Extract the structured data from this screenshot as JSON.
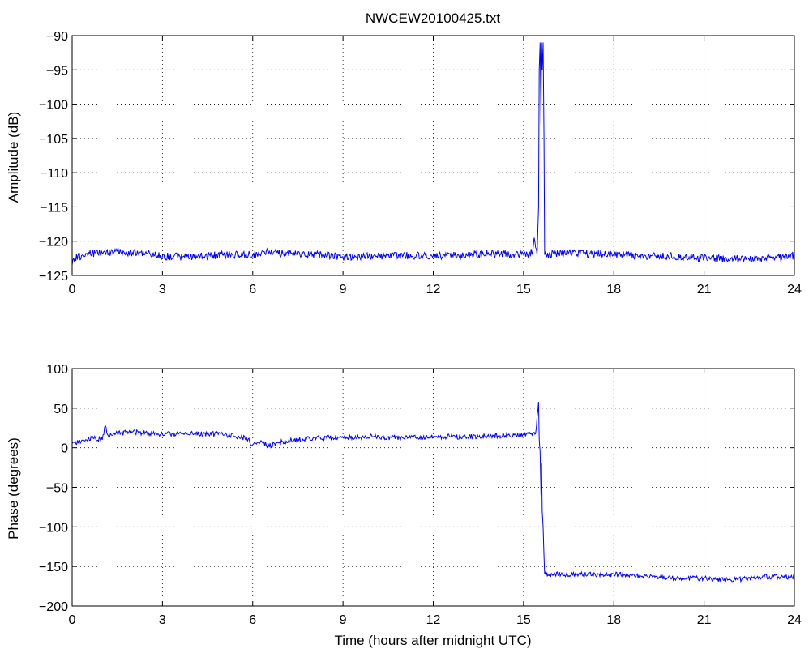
{
  "figure": {
    "title": "NWCEW20100425.txt"
  },
  "chart_data": [
    {
      "type": "line",
      "title": "NWCEW20100425.txt",
      "xlabel": "",
      "ylabel": "Amplitude (dB)",
      "xlim": [
        0,
        24
      ],
      "ylim": [
        -125,
        -90
      ],
      "xticks": [
        0,
        3,
        6,
        9,
        12,
        15,
        18,
        21,
        24
      ],
      "yticks": [
        -125,
        -120,
        -115,
        -110,
        -105,
        -100,
        -95,
        -90
      ],
      "xtick_labels": [
        "0",
        "3",
        "6",
        "9",
        "12",
        "15",
        "18",
        "21",
        "24"
      ],
      "ytick_labels": [
        "−125",
        "−120",
        "−115",
        "−110",
        "−105",
        "−100",
        "−95",
        "−90"
      ],
      "grid": true,
      "line_color": "#0000ff",
      "series": [
        {
          "x": [
            0,
            0.05,
            0.5,
            1,
            1.5,
            2,
            2.5,
            3,
            4,
            5,
            6,
            6.5,
            7,
            8,
            9,
            10,
            11,
            12,
            13,
            14,
            15,
            15.3,
            15.35,
            15.45,
            15.5,
            15.52,
            15.55,
            15.58,
            15.6,
            15.62,
            15.65,
            15.68,
            15.7,
            15.75,
            16,
            17,
            18,
            19,
            20,
            20.5,
            21,
            22,
            23,
            23.5,
            24
          ],
          "y": [
            -123.5,
            -122.5,
            -121.8,
            -121.7,
            -121.5,
            -121.7,
            -121.8,
            -122.2,
            -122.3,
            -122,
            -122,
            -121.5,
            -121.8,
            -121.9,
            -122.3,
            -122.2,
            -122.1,
            -122.1,
            -122.1,
            -121.8,
            -122,
            -121.6,
            -119.5,
            -122,
            -115,
            -95,
            -91,
            -103,
            -91,
            -95,
            -91,
            -105,
            -122,
            -122,
            -121.8,
            -121.8,
            -121.9,
            -122.2,
            -122.2,
            -122.3,
            -122.5,
            -122.6,
            -122.6,
            -122.4,
            -122.1
          ]
        }
      ]
    },
    {
      "type": "line",
      "xlabel": "Time (hours after midnight UTC)",
      "ylabel": "Phase (degrees)",
      "xlim": [
        0,
        24
      ],
      "ylim": [
        -200,
        100
      ],
      "xticks": [
        0,
        3,
        6,
        9,
        12,
        15,
        18,
        21,
        24
      ],
      "yticks": [
        -200,
        -150,
        -100,
        -50,
        0,
        50,
        100
      ],
      "xtick_labels": [
        "0",
        "3",
        "6",
        "9",
        "12",
        "15",
        "18",
        "21",
        "24"
      ],
      "ytick_labels": [
        "−200",
        "−150",
        "−100",
        "−50",
        "0",
        "50",
        "100"
      ],
      "grid": true,
      "line_color": "#0000ff",
      "series": [
        {
          "x": [
            0,
            0.3,
            0.7,
            1,
            1.1,
            1.2,
            1.5,
            2,
            3,
            4,
            5,
            5.8,
            6,
            6.3,
            6.5,
            6.8,
            7,
            8,
            9,
            10,
            11,
            12,
            13,
            14,
            15,
            15.4,
            15.5,
            15.52,
            15.55,
            15.58,
            15.6,
            15.62,
            15.65,
            15.7,
            16,
            17,
            18,
            19,
            20,
            21,
            22,
            23,
            24
          ],
          "y": [
            5,
            8,
            12,
            10,
            28,
            15,
            18,
            20,
            17,
            18,
            17,
            12,
            4,
            8,
            2,
            6,
            8,
            12,
            13,
            14,
            12,
            14,
            14,
            15,
            17,
            18,
            58,
            10,
            -5,
            -60,
            -20,
            -80,
            -100,
            -160,
            -160,
            -160,
            -160,
            -162,
            -165,
            -165,
            -167,
            -163,
            -163
          ]
        }
      ]
    }
  ]
}
